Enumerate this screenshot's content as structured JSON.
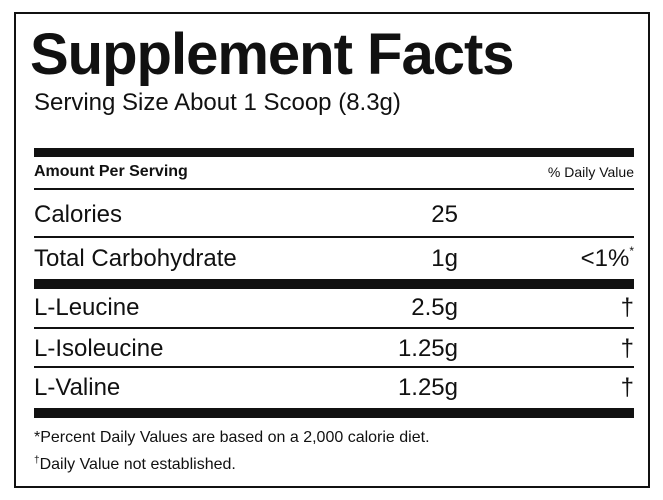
{
  "title": "Supplement Facts",
  "serving_size": "Serving Size About 1 Scoop (8.3g)",
  "header": {
    "amount": "Amount Per Serving",
    "daily_value": "% Daily Value"
  },
  "rows": [
    {
      "name": "Calories",
      "amount": "25"
    },
    {
      "name": "Total Carbohydrate",
      "amount": "1g",
      "dv": "<1%",
      "dv_note": "*"
    },
    {
      "name": "L-Leucine",
      "amount": "2.5g",
      "dv": "†"
    },
    {
      "name": "L-Isoleucine",
      "amount": "1.25g",
      "dv": "†"
    },
    {
      "name": "L-Valine",
      "amount": "1.25g",
      "dv": "†"
    }
  ],
  "footnotes": [
    {
      "mark": "*",
      "text": "Percent Daily Values are based on a 2,000 calorie diet."
    },
    {
      "mark": "†",
      "text": "Daily Value not established."
    }
  ]
}
